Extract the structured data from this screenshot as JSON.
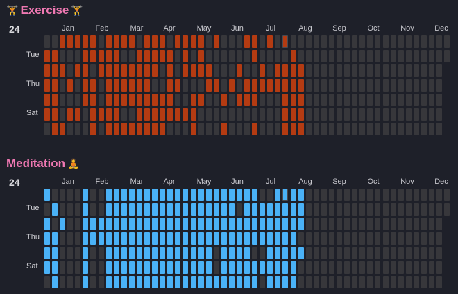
{
  "colors": {
    "background": "#1e2029",
    "empty_cell": "#37373b",
    "title": "#ef78b2",
    "exercise_fill": "#b43b12",
    "meditation_fill": "#4ab2f7"
  },
  "months": [
    "Jan",
    "Feb",
    "Mar",
    "Apr",
    "May",
    "Jun",
    "Jul",
    "Aug",
    "Sep",
    "Oct",
    "Nov",
    "Dec"
  ],
  "day_labels": [
    "Tue",
    "Thu",
    "Sat"
  ],
  "today": {
    "week": 31,
    "row": 0
  },
  "trackers": [
    {
      "name": "Exercise",
      "emoji_left": "🏋",
      "emoji_right": "🏋",
      "year": "24",
      "fill": "#b43b12",
      "rows": [
        "0011111011110111011110100011010100",
        "1100011111001111101010000001000010",
        "1110110111111110101111000100101111",
        "1101011011111100110001101011111111",
        "1100011011111111100110010111000111",
        "1101101111001111111100000000000111",
        "0110001011111111000100010001000111"
      ]
    },
    {
      "name": "Meditation",
      "emoji_left": "",
      "emoji_right": "🧘",
      "year": "24",
      "fill": "#4ab2f7",
      "rows": [
        "1000010011111111111111111111001111",
        "0100010011111111111111111011111111",
        "1010011111111111111111111111111111",
        "1100011111111111111111111111111110",
        "1100010011111111111111011110011111",
        "1100010011111111111111011111111110",
        "0100010011111111111111111111011110"
      ]
    }
  ]
}
